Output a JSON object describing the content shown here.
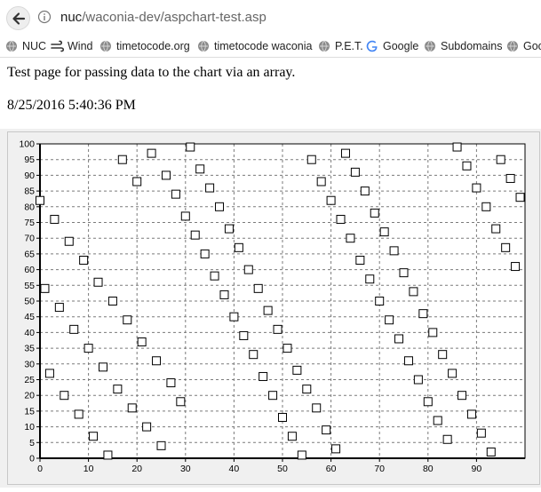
{
  "browser": {
    "url_host": "nuc",
    "url_path": "/waconia-dev/aspchart-test.asp",
    "bookmarks": [
      {
        "label": "NUC",
        "icon": "globe-icon"
      },
      {
        "label": "Wind",
        "icon": "wind-icon"
      },
      {
        "label": "timetocode.org",
        "icon": "globe-icon"
      },
      {
        "label": "timetocode waconia",
        "icon": "globe-icon"
      },
      {
        "label": "P.E.T.",
        "icon": "globe-icon"
      },
      {
        "label": "Google",
        "icon": "google-icon"
      },
      {
        "label": "Subdomains",
        "icon": "globe-icon"
      },
      {
        "label": "Goo",
        "icon": "globe-icon"
      }
    ]
  },
  "page": {
    "intro": "Test page for passing data to the chart via an array.",
    "timestamp": "8/25/2016 5:40:36 PM"
  },
  "colors": {
    "chart_bg": "#f0f0f0",
    "plot_bg": "#ffffff",
    "grid": "#7a7a7a",
    "axis": "#000000",
    "marker": "#000000"
  },
  "chart_data": {
    "type": "scatter",
    "title": "",
    "xlabel": "",
    "ylabel": "",
    "xlim": [
      0,
      100
    ],
    "ylim": [
      0,
      100
    ],
    "x_ticks": [
      0,
      10,
      20,
      30,
      40,
      50,
      60,
      70,
      80,
      90
    ],
    "y_ticks": [
      0,
      5,
      10,
      15,
      20,
      25,
      30,
      35,
      40,
      45,
      50,
      55,
      60,
      65,
      70,
      75,
      80,
      85,
      90,
      95,
      100
    ],
    "grid": true,
    "legend": "none",
    "marker": "open-square",
    "x": [
      0,
      1,
      2,
      3,
      4,
      5,
      6,
      7,
      8,
      9,
      10,
      11,
      12,
      13,
      14,
      15,
      16,
      17,
      18,
      19,
      20,
      21,
      22,
      23,
      24,
      25,
      26,
      27,
      28,
      29,
      30,
      31,
      32,
      33,
      34,
      35,
      36,
      37,
      38,
      39,
      40,
      41,
      42,
      43,
      44,
      45,
      46,
      47,
      48,
      49,
      50,
      51,
      52,
      53,
      54,
      55,
      56,
      57,
      58,
      59,
      60,
      61,
      62,
      63,
      64,
      65,
      66,
      67,
      68,
      69,
      70,
      71,
      72,
      73,
      74,
      75,
      76,
      77,
      78,
      79,
      80,
      81,
      82,
      83,
      84,
      85,
      86,
      87,
      88,
      89,
      90,
      91,
      92,
      93,
      94,
      95,
      96,
      97,
      98,
      99
    ],
    "y": [
      82,
      54,
      27,
      76,
      48,
      20,
      69,
      41,
      14,
      63,
      35,
      7,
      56,
      29,
      1,
      50,
      22,
      95,
      44,
      16,
      88,
      37,
      10,
      97,
      31,
      4,
      90,
      24,
      84,
      18,
      77,
      99,
      71,
      92,
      65,
      86,
      58,
      80,
      52,
      73,
      45,
      67,
      39,
      60,
      33,
      54,
      26,
      47,
      20,
      41,
      13,
      35,
      7,
      28,
      1,
      22,
      95,
      16,
      88,
      9,
      82,
      3,
      76,
      97,
      70,
      91,
      63,
      85,
      57,
      78,
      50,
      72,
      44,
      66,
      38,
      59,
      31,
      53,
      25,
      46,
      18,
      40,
      12,
      33,
      6,
      27,
      99,
      20,
      93,
      14,
      86,
      8,
      80,
      2,
      73,
      95,
      67,
      89,
      61,
      83
    ]
  }
}
